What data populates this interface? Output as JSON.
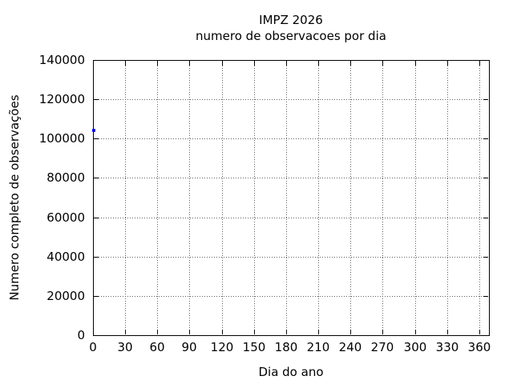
{
  "window": {
    "background": "#ffffff",
    "text_color": "#000000"
  },
  "chart_data": {
    "type": "scatter",
    "title": "IMPZ 2026",
    "subtitle": "numero de observacoes por dia",
    "xlabel": "Dia do ano",
    "ylabel": "Numero completo de observações",
    "xlim": [
      0,
      369
    ],
    "ylim": [
      0,
      140000
    ],
    "xticks": [
      0,
      30,
      60,
      90,
      120,
      150,
      180,
      210,
      240,
      270,
      300,
      330,
      360
    ],
    "yticks": [
      0,
      20000,
      40000,
      60000,
      80000,
      100000,
      120000,
      140000
    ],
    "grid": true,
    "grid_style": "dotted",
    "grid_color": "#606060",
    "axis_color": "#000000",
    "legend": "none",
    "series": [
      {
        "name": "observacoes",
        "marker": "point",
        "color": "#0000ff",
        "points": [
          {
            "x": 1,
            "y": 104000
          }
        ]
      }
    ]
  }
}
